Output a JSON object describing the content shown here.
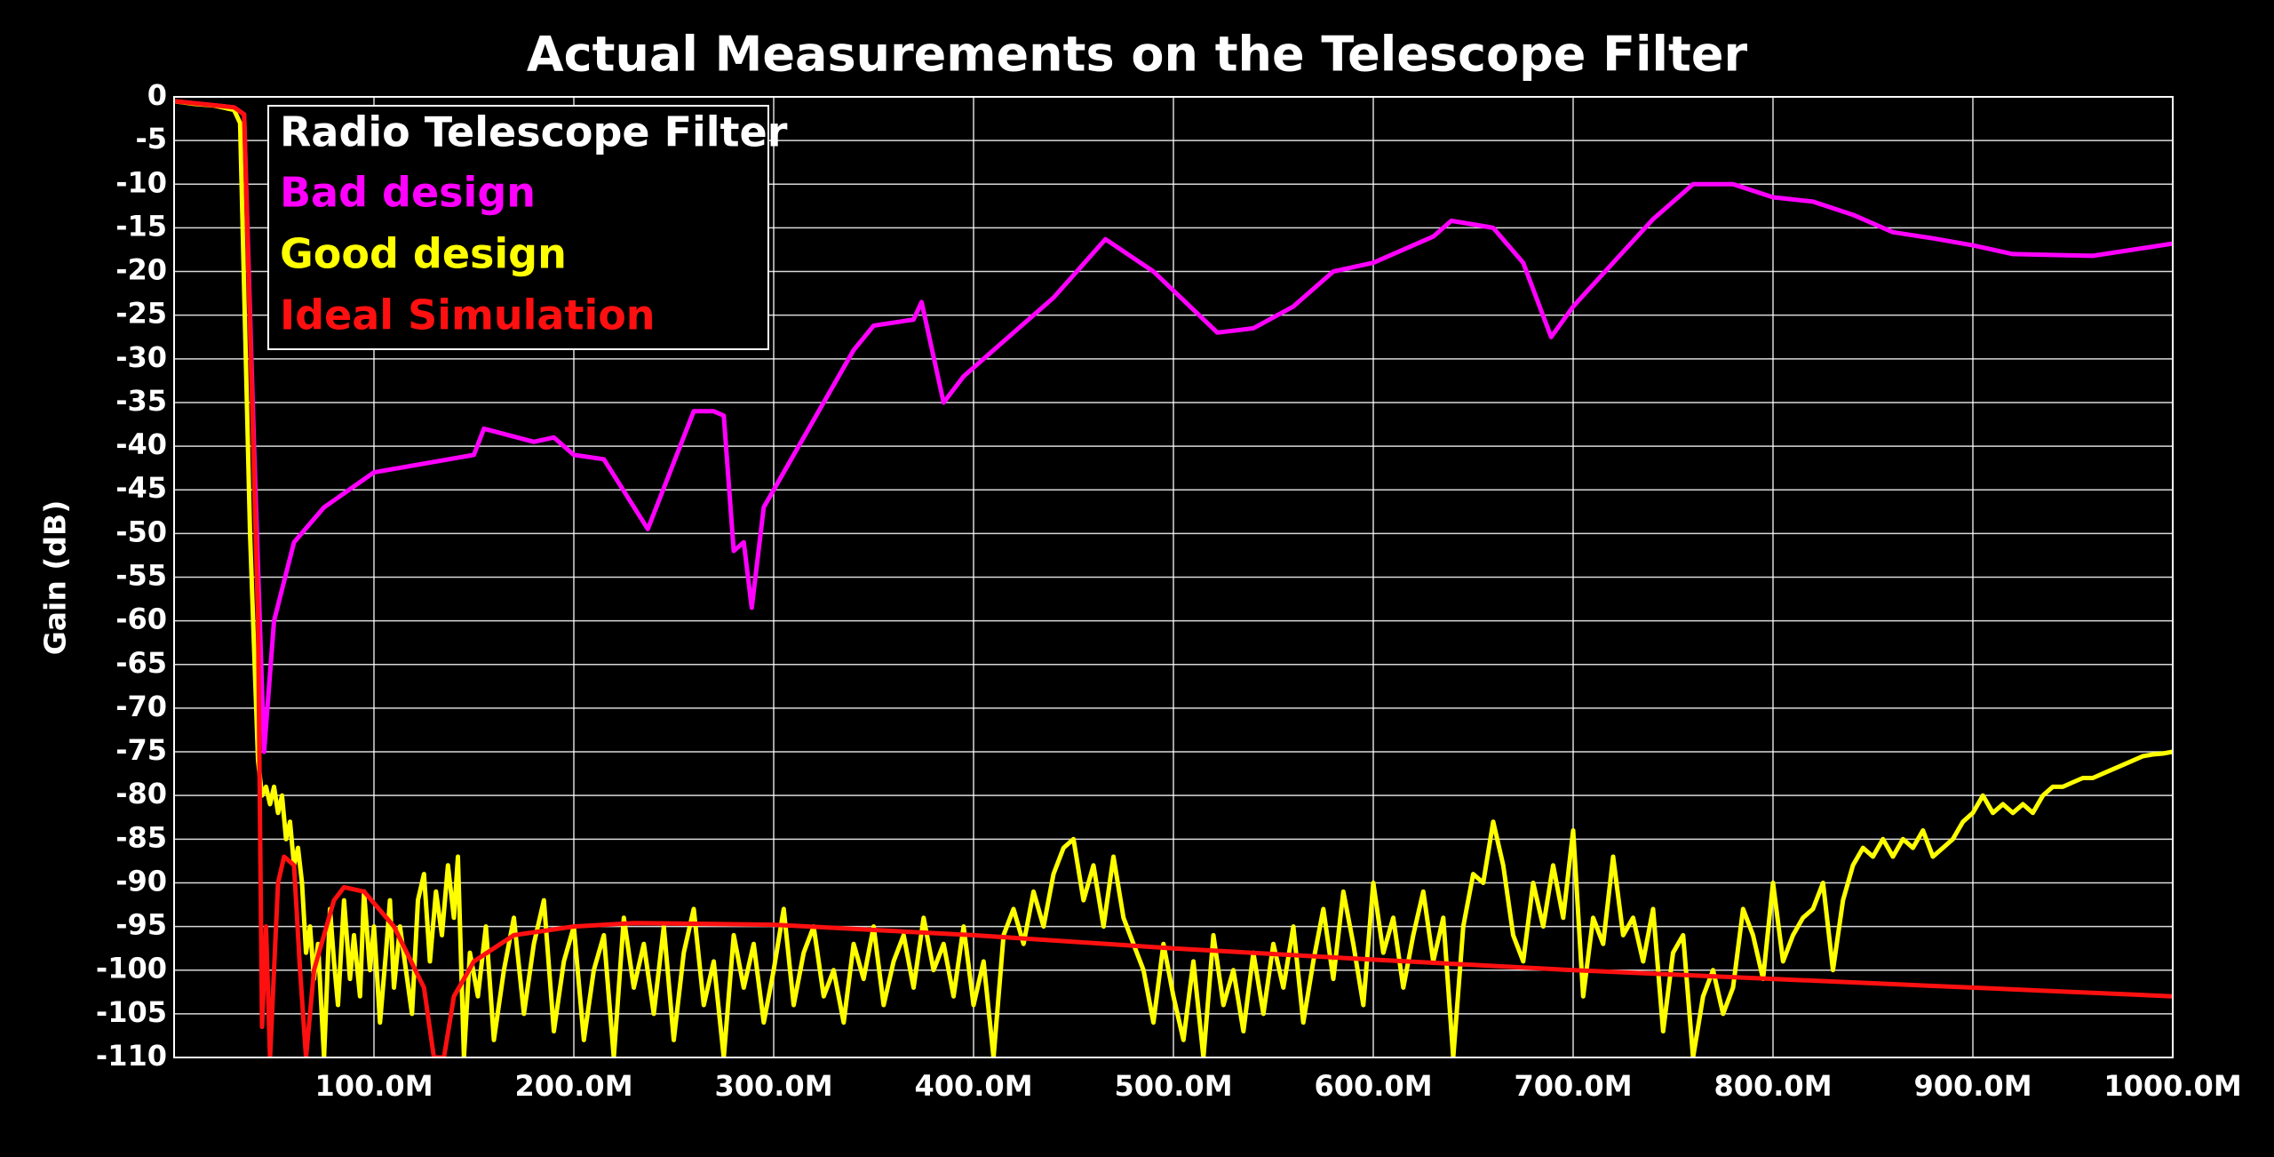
{
  "chart_data": {
    "type": "line",
    "title": "Actual Measurements on the Telescope Filter",
    "ylabel": "Gain (dB)",
    "legend_title": "Radio Telescope Filter",
    "legend": "upper left",
    "grid": true,
    "xlim": [
      0,
      1000
    ],
    "xticks": [
      {
        "value": 100,
        "label": "100.0M"
      },
      {
        "value": 200,
        "label": "200.0M"
      },
      {
        "value": 300,
        "label": "300.0M"
      },
      {
        "value": 400,
        "label": "400.0M"
      },
      {
        "value": 500,
        "label": "500.0M"
      },
      {
        "value": 600,
        "label": "600.0M"
      },
      {
        "value": 700,
        "label": "700.0M"
      },
      {
        "value": 800,
        "label": "800.0M"
      },
      {
        "value": 900,
        "label": "900.0M"
      },
      {
        "value": 1000,
        "label": "1000.0M"
      }
    ],
    "ylim": [
      -110,
      0
    ],
    "yticks": [
      0,
      -5,
      -10,
      -15,
      -20,
      -25,
      -30,
      -35,
      -40,
      -45,
      -50,
      -55,
      -60,
      -65,
      -70,
      -75,
      -80,
      -85,
      -90,
      -95,
      -100,
      -105,
      -110
    ],
    "series": [
      {
        "name": "Bad design",
        "color": "#ff00ff",
        "x": [
          0,
          30,
          35,
          40,
          45,
          50,
          60,
          75,
          100,
          140,
          150,
          155,
          180,
          190,
          200,
          215,
          237,
          260,
          270,
          275,
          280,
          285,
          289,
          295,
          320,
          340,
          350,
          370,
          374,
          385,
          395,
          410,
          440,
          466,
          490,
          522,
          540,
          560,
          580,
          600,
          630,
          639,
          650,
          660,
          675,
          689,
          700,
          720,
          740,
          760,
          780,
          800,
          820,
          840,
          860,
          880,
          900,
          920,
          960,
          980,
          1000
        ],
        "values": [
          -0.5,
          -1.2,
          -2,
          -40,
          -75,
          -60,
          -51,
          -47,
          -43,
          -41.4,
          -41,
          -38,
          -39.5,
          -39,
          -41,
          -41.5,
          -49.5,
          -36,
          -36,
          -36.5,
          -52,
          -51,
          -58.5,
          -47,
          -37,
          -29,
          -26.2,
          -25.5,
          -23.5,
          -35,
          -32,
          -29,
          -23,
          -16.3,
          -20,
          -27,
          -26.5,
          -24,
          -20,
          -19,
          -16,
          -14.2,
          -14.6,
          -15,
          -19,
          -27.5,
          -24,
          -19,
          -14,
          -10,
          -10,
          -11.5,
          -12,
          -13.5,
          -15.5,
          -16.2,
          -17,
          -18,
          -18.2,
          -17.5,
          -16.8
        ]
      },
      {
        "name": "Good design",
        "color": "#ffff00",
        "x": [
          0,
          10,
          20,
          30,
          33,
          38,
          42,
          44,
          46,
          48,
          50,
          52,
          54,
          56,
          58,
          60,
          62,
          64,
          66,
          68,
          70,
          72,
          75,
          78,
          80,
          82,
          85,
          88,
          90,
          93,
          95,
          98,
          100,
          103,
          106,
          108,
          110,
          113,
          116,
          119,
          122,
          125,
          128,
          131,
          134,
          137,
          140,
          142,
          145,
          148,
          152,
          156,
          160,
          165,
          170,
          175,
          180,
          185,
          190,
          195,
          200,
          205,
          210,
          215,
          220,
          225,
          230,
          235,
          240,
          245,
          250,
          255,
          260,
          265,
          270,
          275,
          280,
          285,
          290,
          295,
          300,
          305,
          310,
          315,
          320,
          325,
          330,
          335,
          340,
          345,
          350,
          355,
          360,
          365,
          370,
          375,
          380,
          385,
          390,
          395,
          400,
          405,
          410,
          415,
          420,
          425,
          430,
          435,
          440,
          445,
          450,
          455,
          460,
          465,
          470,
          475,
          480,
          485,
          490,
          495,
          500,
          505,
          510,
          515,
          520,
          525,
          530,
          535,
          540,
          545,
          550,
          555,
          560,
          565,
          570,
          575,
          580,
          585,
          590,
          595,
          600,
          605,
          610,
          615,
          620,
          625,
          630,
          635,
          640,
          645,
          650,
          655,
          660,
          665,
          670,
          675,
          680,
          685,
          690,
          695,
          700,
          705,
          710,
          715,
          720,
          725,
          730,
          735,
          740,
          745,
          750,
          755,
          760,
          765,
          770,
          775,
          780,
          785,
          790,
          795,
          800,
          805,
          810,
          815,
          820,
          825,
          830,
          835,
          840,
          845,
          850,
          855,
          860,
          865,
          870,
          875,
          880,
          885,
          890,
          895,
          900,
          905,
          910,
          915,
          920,
          925,
          930,
          935,
          940,
          945,
          950,
          955,
          960,
          965,
          970,
          975,
          980,
          985,
          990,
          995,
          1000
        ],
        "values": [
          -0.5,
          -0.8,
          -1,
          -1.5,
          -3,
          -50,
          -76,
          -80,
          -79,
          -81,
          -79,
          -82,
          -80,
          -85,
          -83,
          -88,
          -86,
          -90,
          -98,
          -95,
          -101,
          -97,
          -110,
          -93,
          -99,
          -104,
          -92,
          -101,
          -96,
          -103,
          -91,
          -100,
          -95,
          -106,
          -98,
          -92,
          -102,
          -95,
          -100,
          -105,
          -92,
          -89,
          -99,
          -91,
          -96,
          -88,
          -94,
          -87,
          -110,
          -98,
          -103,
          -95,
          -108,
          -100,
          -94,
          -105,
          -97,
          -92,
          -107,
          -99,
          -95,
          -108,
          -100,
          -96,
          -110,
          -94,
          -102,
          -97,
          -105,
          -95,
          -108,
          -98,
          -93,
          -104,
          -99,
          -110,
          -96,
          -102,
          -97,
          -106,
          -100,
          -93,
          -104,
          -98,
          -95,
          -103,
          -100,
          -106,
          -97,
          -101,
          -95,
          -104,
          -99,
          -96,
          -102,
          -94,
          -100,
          -97,
          -103,
          -95,
          -104,
          -99,
          -110,
          -96,
          -93,
          -97,
          -91,
          -95,
          -89,
          -86,
          -85,
          -92,
          -88,
          -95,
          -87,
          -94,
          -97,
          -100,
          -106,
          -97,
          -103,
          -108,
          -99,
          -110,
          -96,
          -104,
          -100,
          -107,
          -98,
          -105,
          -97,
          -102,
          -95,
          -106,
          -99,
          -93,
          -101,
          -91,
          -97,
          -104,
          -90,
          -98,
          -94,
          -102,
          -96,
          -91,
          -99,
          -94,
          -110,
          -95,
          -89,
          -90,
          -83,
          -88,
          -96,
          -99,
          -90,
          -95,
          -88,
          -94,
          -84,
          -103,
          -94,
          -97,
          -87,
          -96,
          -94,
          -99,
          -93,
          -107,
          -98,
          -96,
          -110,
          -103,
          -100,
          -105,
          -102,
          -93,
          -96,
          -101,
          -90,
          -99,
          -96,
          -94,
          -93,
          -90,
          -100,
          -92,
          -88,
          -86,
          -87,
          -85,
          -87,
          -85,
          -86,
          -84,
          -87,
          -86,
          -85,
          -83,
          -82,
          -80,
          -82,
          -81,
          -82,
          -81,
          -82,
          -80,
          -79,
          -79,
          -78.5,
          -78,
          -78,
          -77.5,
          -77,
          -76.5,
          -76,
          -75.5,
          -75.3,
          -75.2,
          -75
        ]
      },
      {
        "name": "Ideal Simulation",
        "color": "#ff1010",
        "x": [
          0,
          30,
          35,
          42,
          44,
          46,
          48,
          52,
          55,
          60,
          63,
          66,
          70,
          80,
          85,
          95,
          110,
          125,
          130,
          135,
          140,
          150,
          170,
          200,
          230,
          300,
          400,
          500,
          600,
          700,
          800,
          900,
          1000
        ],
        "values": [
          -0.5,
          -1.2,
          -2,
          -60,
          -106.5,
          -95,
          -110,
          -90,
          -87,
          -88,
          -100,
          -110,
          -100,
          -92,
          -90.5,
          -91,
          -95,
          -102,
          -110,
          -110,
          -103,
          -99,
          -96,
          -95,
          -94.6,
          -94.8,
          -96,
          -97.5,
          -98.8,
          -100,
          -101,
          -102,
          -103
        ]
      }
    ]
  }
}
